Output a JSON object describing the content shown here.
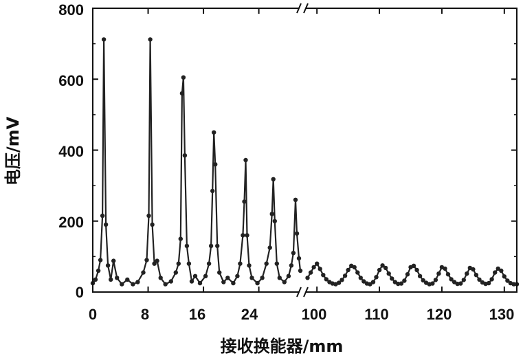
{
  "chart_data": {
    "type": "line",
    "xlabel": "接收换能器/mm",
    "ylabel": "电压/mV",
    "ylim": [
      0,
      800
    ],
    "yticks": [
      0,
      200,
      400,
      600,
      800
    ],
    "x_axis": {
      "broken": true,
      "segments": [
        {
          "range": [
            0,
            30
          ],
          "ticks": [
            0,
            8,
            16,
            24
          ]
        },
        {
          "range": [
            98,
            132
          ],
          "ticks": [
            100,
            110,
            120,
            130
          ]
        }
      ]
    },
    "tick_labels_x": [
      "0",
      "8",
      "16",
      "24",
      "100",
      "110",
      "120",
      "130"
    ],
    "tick_labels_y": [
      "0",
      "200",
      "400",
      "600",
      "800"
    ],
    "grid": false,
    "legend": "none",
    "colors": {
      "series": "#222222",
      "axis": "#111111"
    },
    "series": [
      {
        "marker": "circle",
        "points": [
          [
            0.0,
            25
          ],
          [
            0.4,
            35
          ],
          [
            0.8,
            60
          ],
          [
            1.1,
            90
          ],
          [
            1.4,
            215
          ],
          [
            1.6,
            712
          ],
          [
            1.9,
            190
          ],
          [
            2.2,
            75
          ],
          [
            2.6,
            35
          ],
          [
            3.0,
            88
          ],
          [
            3.5,
            40
          ],
          [
            4.2,
            22
          ],
          [
            5.0,
            35
          ],
          [
            5.8,
            22
          ],
          [
            6.5,
            28
          ],
          [
            7.3,
            55
          ],
          [
            7.8,
            90
          ],
          [
            8.1,
            215
          ],
          [
            8.3,
            712
          ],
          [
            8.6,
            190
          ],
          [
            8.9,
            80
          ],
          [
            9.3,
            88
          ],
          [
            9.8,
            40
          ],
          [
            10.5,
            22
          ],
          [
            11.3,
            30
          ],
          [
            12.0,
            55
          ],
          [
            12.4,
            80
          ],
          [
            12.7,
            150
          ],
          [
            12.9,
            560
          ],
          [
            13.1,
            605
          ],
          [
            13.3,
            385
          ],
          [
            13.6,
            130
          ],
          [
            13.9,
            80
          ],
          [
            14.3,
            30
          ],
          [
            14.8,
            45
          ],
          [
            15.5,
            25
          ],
          [
            16.3,
            45
          ],
          [
            16.8,
            80
          ],
          [
            17.1,
            130
          ],
          [
            17.3,
            285
          ],
          [
            17.5,
            450
          ],
          [
            17.7,
            360
          ],
          [
            18.0,
            130
          ],
          [
            18.3,
            55
          ],
          [
            18.9,
            28
          ],
          [
            19.5,
            40
          ],
          [
            20.3,
            25
          ],
          [
            20.9,
            45
          ],
          [
            21.3,
            80
          ],
          [
            21.7,
            160
          ],
          [
            21.9,
            255
          ],
          [
            22.1,
            372
          ],
          [
            22.3,
            160
          ],
          [
            22.6,
            75
          ],
          [
            23.0,
            40
          ],
          [
            23.8,
            25
          ],
          [
            24.5,
            40
          ],
          [
            25.1,
            80
          ],
          [
            25.6,
            125
          ],
          [
            25.9,
            220
          ],
          [
            26.1,
            318
          ],
          [
            26.3,
            200
          ],
          [
            26.6,
            80
          ],
          [
            27.0,
            40
          ],
          [
            27.7,
            28
          ],
          [
            28.3,
            45
          ],
          [
            28.7,
            75
          ],
          [
            29.0,
            110
          ],
          [
            29.3,
            260
          ],
          [
            29.5,
            165
          ],
          [
            29.8,
            95
          ],
          [
            30.0,
            60
          ]
        ]
      },
      {
        "marker": "circle",
        "points": [
          [
            98.5,
            40
          ],
          [
            99.0,
            55
          ],
          [
            99.5,
            70
          ],
          [
            100.0,
            80
          ],
          [
            100.5,
            65
          ],
          [
            101.0,
            48
          ],
          [
            101.5,
            36
          ],
          [
            102.0,
            28
          ],
          [
            102.5,
            24
          ],
          [
            103.0,
            22
          ],
          [
            103.5,
            26
          ],
          [
            104.0,
            34
          ],
          [
            104.5,
            46
          ],
          [
            105.0,
            62
          ],
          [
            105.5,
            74
          ],
          [
            106.0,
            70
          ],
          [
            106.5,
            55
          ],
          [
            107.0,
            40
          ],
          [
            107.5,
            30
          ],
          [
            108.0,
            24
          ],
          [
            108.5,
            22
          ],
          [
            109.0,
            28
          ],
          [
            109.5,
            42
          ],
          [
            110.0,
            62
          ],
          [
            110.5,
            75
          ],
          [
            111.0,
            68
          ],
          [
            111.5,
            52
          ],
          [
            112.0,
            38
          ],
          [
            112.5,
            28
          ],
          [
            113.0,
            23
          ],
          [
            113.5,
            24
          ],
          [
            114.0,
            32
          ],
          [
            114.5,
            50
          ],
          [
            115.0,
            70
          ],
          [
            115.5,
            74
          ],
          [
            116.0,
            62
          ],
          [
            116.5,
            45
          ],
          [
            117.0,
            33
          ],
          [
            117.5,
            26
          ],
          [
            118.0,
            22
          ],
          [
            118.5,
            24
          ],
          [
            119.0,
            34
          ],
          [
            119.5,
            52
          ],
          [
            120.0,
            70
          ],
          [
            120.5,
            66
          ],
          [
            121.0,
            50
          ],
          [
            121.5,
            36
          ],
          [
            122.0,
            28
          ],
          [
            122.5,
            23
          ],
          [
            123.0,
            24
          ],
          [
            123.5,
            34
          ],
          [
            124.0,
            52
          ],
          [
            124.5,
            68
          ],
          [
            125.0,
            64
          ],
          [
            125.5,
            48
          ],
          [
            126.0,
            35
          ],
          [
            126.5,
            27
          ],
          [
            127.0,
            23
          ],
          [
            127.5,
            25
          ],
          [
            128.0,
            36
          ],
          [
            128.5,
            55
          ],
          [
            129.0,
            66
          ],
          [
            129.5,
            60
          ],
          [
            130.0,
            44
          ],
          [
            130.5,
            32
          ],
          [
            131.0,
            25
          ],
          [
            131.5,
            22
          ],
          [
            132.0,
            22
          ]
        ]
      }
    ]
  }
}
